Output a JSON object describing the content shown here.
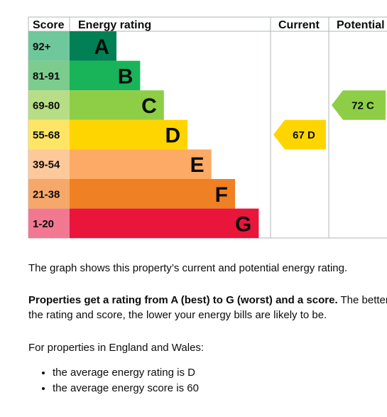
{
  "chart_data": {
    "type": "bar",
    "headers": {
      "score": "Score",
      "rating": "Energy rating",
      "current": "Current",
      "potential": "Potential"
    },
    "bands": [
      {
        "score": "92+",
        "letter": "A",
        "color": "#008054",
        "score_bg": "#6fc89c"
      },
      {
        "score": "81-91",
        "letter": "B",
        "color": "#19b459",
        "score_bg": "#7ccc8e"
      },
      {
        "score": "69-80",
        "letter": "C",
        "color": "#8dce46",
        "score_bg": "#b7de86"
      },
      {
        "score": "55-68",
        "letter": "D",
        "color": "#ffd500",
        "score_bg": "#ffe566"
      },
      {
        "score": "39-54",
        "letter": "E",
        "color": "#fcaa65",
        "score_bg": "#fdc99a"
      },
      {
        "score": "21-38",
        "letter": "F",
        "color": "#ef8023",
        "score_bg": "#f5a86a"
      },
      {
        "score": "1-20",
        "letter": "G",
        "color": "#e9153b",
        "score_bg": "#f27892"
      }
    ],
    "current": {
      "value": 67,
      "letter": "D",
      "label": "67  D",
      "color": "#ffd500"
    },
    "potential": {
      "value": 72,
      "letter": "C",
      "label": "72  C",
      "color": "#8dce46"
    }
  },
  "text": {
    "p1": "The graph shows this property’s current and potential energy rating.",
    "p2_bold": "Properties get a rating from A (best) to G (worst) and a score.",
    "p2_rest": " The better the rating and score, the lower your energy bills are likely to be.",
    "p3": "For properties in England and Wales:",
    "bullets": [
      "the average energy rating is D",
      "the average energy score is 60"
    ]
  }
}
